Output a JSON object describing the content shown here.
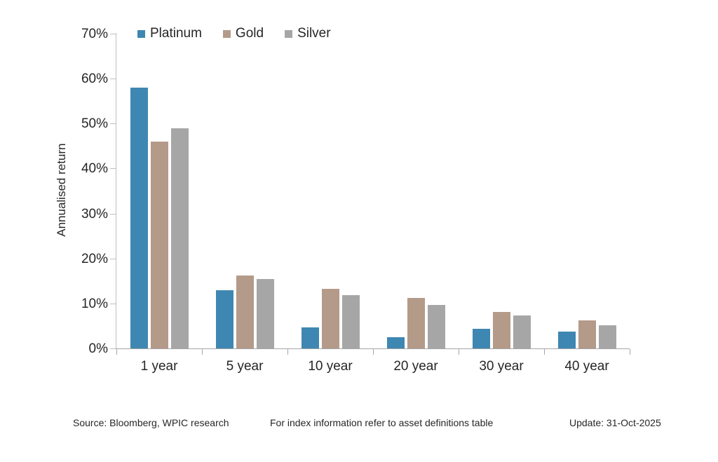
{
  "chart_data": {
    "type": "bar",
    "title": "",
    "categories": [
      "1 year",
      "5 year",
      "10 year",
      "20 year",
      "30 year",
      "40 year"
    ],
    "series": [
      {
        "name": "Platinum",
        "color": "#3e87b2",
        "values": [
          58,
          13,
          4.6,
          2.5,
          4.4,
          3.8
        ]
      },
      {
        "name": "Gold",
        "color": "#b49a88",
        "values": [
          46,
          16.2,
          13.2,
          11.2,
          8.1,
          6.3
        ]
      },
      {
        "name": "Silver",
        "color": "#a6a6a6",
        "values": [
          49,
          15.4,
          11.9,
          9.6,
          7.4,
          5.1
        ]
      }
    ],
    "xlabel": "",
    "ylabel": "Annualised return",
    "ylim": [
      0,
      70
    ],
    "ytick_step": 10,
    "ytick_suffix": "%",
    "grid": false,
    "legend_position": "top",
    "axis_color": "#bfbfbf",
    "text_color": "#262626"
  },
  "footer": {
    "source": "Source: Bloomberg, WPIC research",
    "note": "For index information refer to asset definitions table",
    "update": "Update: 31-Oct-2025"
  }
}
